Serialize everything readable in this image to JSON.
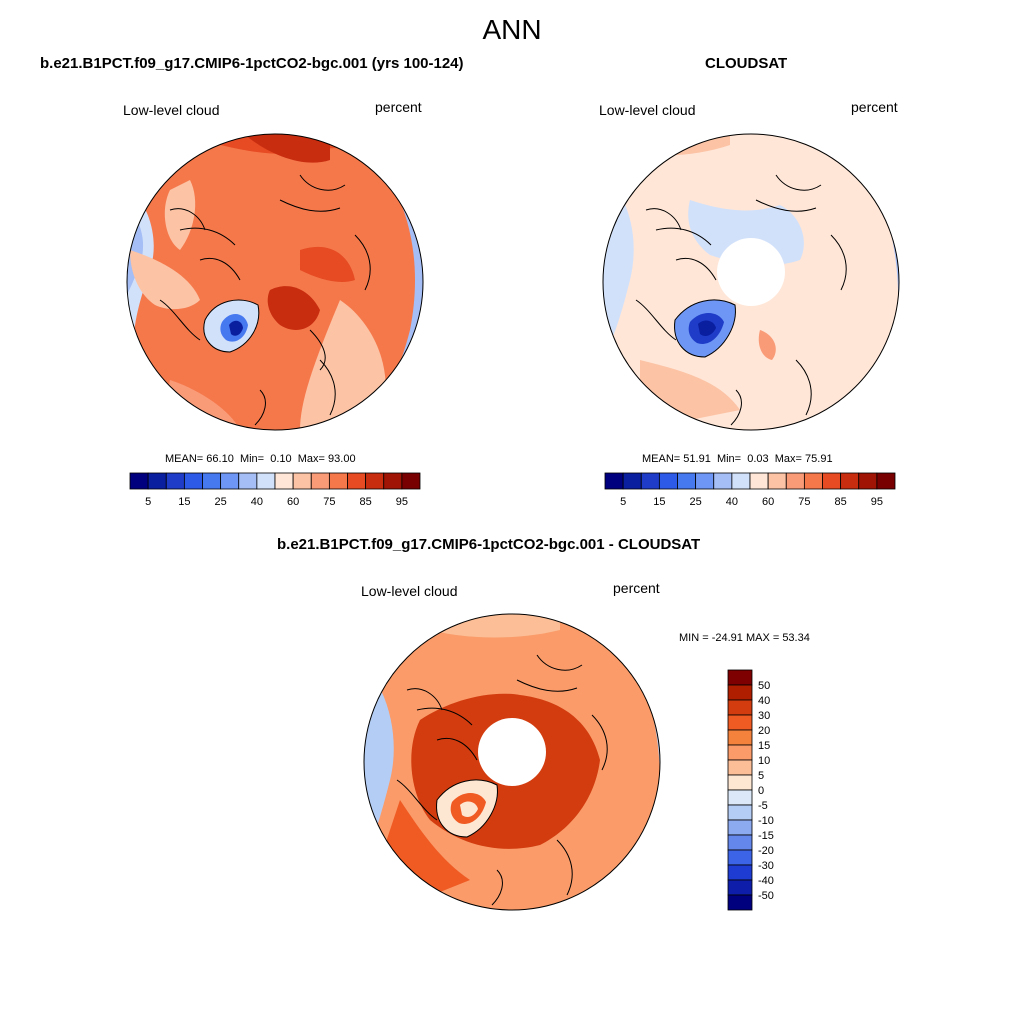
{
  "page_title": "ANN",
  "chart_data": [
    {
      "type": "heatmap",
      "projection": "north-polar-stereographic",
      "title": "b.e21.B1PCT.f09_g17.CMIP6-1pctCO2-bgc.001 (yrs 100-124)",
      "left_label": "Low-level cloud",
      "right_label": "percent",
      "stats": {
        "mean_label": "MEAN=",
        "mean": "66.10",
        "min_label": "Min=",
        "min": "0.10",
        "max_label": "Max=",
        "max": "93.00"
      },
      "colorbar": {
        "orientation": "horizontal",
        "levels": [
          5,
          10,
          15,
          20,
          25,
          30,
          40,
          50,
          60,
          70,
          75,
          80,
          85,
          90,
          95
        ],
        "tick_labels": [
          "5",
          "15",
          "25",
          "40",
          "60",
          "75",
          "85",
          "95"
        ],
        "colors": [
          "#00007f",
          "#0a1ea0",
          "#1e3cc8",
          "#2d5ae6",
          "#4678f0",
          "#6e96f5",
          "#a5bef5",
          "#d2e1fa",
          "#ffe6d7",
          "#fcc3a5",
          "#fa9b78",
          "#f5784b",
          "#e64b23",
          "#c82d0f",
          "#a01405",
          "#780000"
        ]
      }
    },
    {
      "type": "heatmap",
      "projection": "north-polar-stereographic",
      "title": "CLOUDSAT",
      "left_label": "Low-level cloud",
      "right_label": "percent",
      "stats": {
        "mean_label": "MEAN=",
        "mean": "51.91",
        "min_label": "Min=",
        "min": "0.03",
        "max_label": "Max=",
        "max": "75.91"
      },
      "colorbar": {
        "orientation": "horizontal",
        "levels": [
          5,
          10,
          15,
          20,
          25,
          30,
          40,
          50,
          60,
          70,
          75,
          80,
          85,
          90,
          95
        ],
        "tick_labels": [
          "5",
          "15",
          "25",
          "40",
          "60",
          "75",
          "85",
          "95"
        ],
        "colors": [
          "#00007f",
          "#0a1ea0",
          "#1e3cc8",
          "#2d5ae6",
          "#4678f0",
          "#6e96f5",
          "#a5bef5",
          "#d2e1fa",
          "#ffe6d7",
          "#fcc3a5",
          "#fa9b78",
          "#f5784b",
          "#e64b23",
          "#c82d0f",
          "#a01405",
          "#780000"
        ]
      }
    },
    {
      "type": "heatmap",
      "projection": "north-polar-stereographic",
      "title": "b.e21.B1PCT.f09_g17.CMIP6-1pctCO2-bgc.001 - CLOUDSAT",
      "left_label": "Low-level cloud",
      "right_label": "percent",
      "stats": {
        "minmax_text": "MIN = -24.91 MAX =  53.34"
      },
      "colorbar": {
        "orientation": "vertical",
        "tick_labels": [
          "50",
          "40",
          "30",
          "20",
          "15",
          "10",
          "5",
          "0",
          "-5",
          "-10",
          "-15",
          "-20",
          "-30",
          "-40",
          "-50"
        ],
        "colors": [
          "#7f0000",
          "#b01e00",
          "#d23c0f",
          "#f05a23",
          "#f5823c",
          "#fa9b69",
          "#fcbe96",
          "#fde6d2",
          "#dce8f8",
          "#b4cdf5",
          "#8caaf0",
          "#6487eb",
          "#3c64e6",
          "#1e3cd2",
          "#0f1eaa",
          "#00007f"
        ]
      }
    }
  ]
}
